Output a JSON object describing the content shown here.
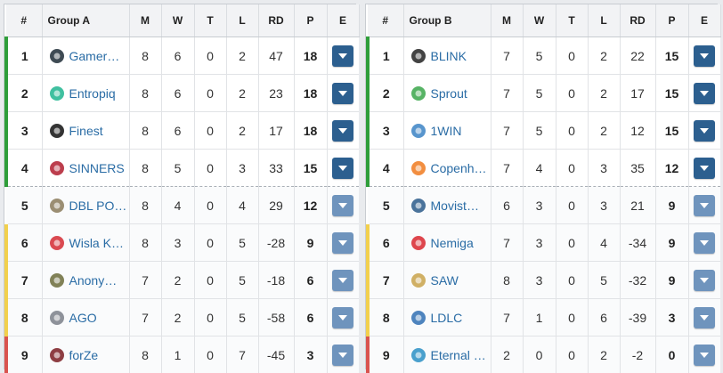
{
  "colors": {
    "qualified": "#2f9e3a",
    "middle": "#f2d04d",
    "relegated": "#d9534f",
    "button": "#2c5f8f",
    "button_light": "#6f94bd",
    "link": "#2a6ca5"
  },
  "columns": [
    "#",
    "M",
    "W",
    "T",
    "L",
    "RD",
    "P",
    "E"
  ],
  "groups": [
    {
      "name": "Group A",
      "rows": [
        {
          "pos": "1",
          "team": "Gamer…",
          "m": "8",
          "w": "6",
          "t": "0",
          "l": "2",
          "rd": "47",
          "p": "18",
          "logo": "gamerlegion-icon",
          "status": "q"
        },
        {
          "pos": "2",
          "team": "Entropiq",
          "m": "8",
          "w": "6",
          "t": "0",
          "l": "2",
          "rd": "23",
          "p": "18",
          "logo": "entropiq-icon",
          "status": "q"
        },
        {
          "pos": "3",
          "team": "Finest",
          "m": "8",
          "w": "6",
          "t": "0",
          "l": "2",
          "rd": "17",
          "p": "18",
          "logo": "finest-icon",
          "status": "q"
        },
        {
          "pos": "4",
          "team": "SINNERS",
          "m": "8",
          "w": "5",
          "t": "0",
          "l": "3",
          "rd": "33",
          "p": "15",
          "logo": "sinners-icon",
          "status": "q"
        },
        {
          "pos": "5",
          "team": "DBL PO…",
          "m": "8",
          "w": "4",
          "t": "0",
          "l": "4",
          "rd": "29",
          "p": "12",
          "logo": "dbl-poney-icon",
          "status": "m"
        },
        {
          "pos": "6",
          "team": "Wisla K…",
          "m": "8",
          "w": "3",
          "t": "0",
          "l": "5",
          "rd": "-28",
          "p": "9",
          "logo": "wisla-icon",
          "status": "y"
        },
        {
          "pos": "7",
          "team": "Anony…",
          "m": "7",
          "w": "2",
          "t": "0",
          "l": "5",
          "rd": "-18",
          "p": "6",
          "logo": "anonymo-icon",
          "status": "y"
        },
        {
          "pos": "8",
          "team": "AGO",
          "m": "7",
          "w": "2",
          "t": "0",
          "l": "5",
          "rd": "-58",
          "p": "6",
          "logo": "ago-icon",
          "status": "y"
        },
        {
          "pos": "9",
          "team": "forZe",
          "m": "8",
          "w": "1",
          "t": "0",
          "l": "7",
          "rd": "-45",
          "p": "3",
          "logo": "forze-icon",
          "status": "r"
        }
      ]
    },
    {
      "name": "Group B",
      "rows": [
        {
          "pos": "1",
          "team": "BLINK",
          "m": "7",
          "w": "5",
          "t": "0",
          "l": "2",
          "rd": "22",
          "p": "15",
          "logo": "blink-icon",
          "status": "q"
        },
        {
          "pos": "2",
          "team": "Sprout",
          "m": "7",
          "w": "5",
          "t": "0",
          "l": "2",
          "rd": "17",
          "p": "15",
          "logo": "sprout-icon",
          "status": "q"
        },
        {
          "pos": "3",
          "team": "1WIN",
          "m": "7",
          "w": "5",
          "t": "0",
          "l": "2",
          "rd": "12",
          "p": "15",
          "logo": "1win-icon",
          "status": "q"
        },
        {
          "pos": "4",
          "team": "Copenh…",
          "m": "7",
          "w": "4",
          "t": "0",
          "l": "3",
          "rd": "35",
          "p": "12",
          "logo": "copenhagen-flames-icon",
          "status": "q"
        },
        {
          "pos": "5",
          "team": "Movist…",
          "m": "6",
          "w": "3",
          "t": "0",
          "l": "3",
          "rd": "21",
          "p": "9",
          "logo": "movistar-icon",
          "status": "m"
        },
        {
          "pos": "6",
          "team": "Nemiga",
          "m": "7",
          "w": "3",
          "t": "0",
          "l": "4",
          "rd": "-34",
          "p": "9",
          "logo": "nemiga-icon",
          "status": "y"
        },
        {
          "pos": "7",
          "team": "SAW",
          "m": "8",
          "w": "3",
          "t": "0",
          "l": "5",
          "rd": "-32",
          "p": "9",
          "logo": "saw-icon",
          "status": "y"
        },
        {
          "pos": "8",
          "team": "LDLC",
          "m": "7",
          "w": "1",
          "t": "0",
          "l": "6",
          "rd": "-39",
          "p": "3",
          "logo": "ldlc-icon",
          "status": "y"
        },
        {
          "pos": "9",
          "team": "Eternal …",
          "m": "2",
          "w": "0",
          "t": "0",
          "l": "2",
          "rd": "-2",
          "p": "0",
          "logo": "eternal-fire-icon",
          "status": "r"
        }
      ]
    }
  ]
}
